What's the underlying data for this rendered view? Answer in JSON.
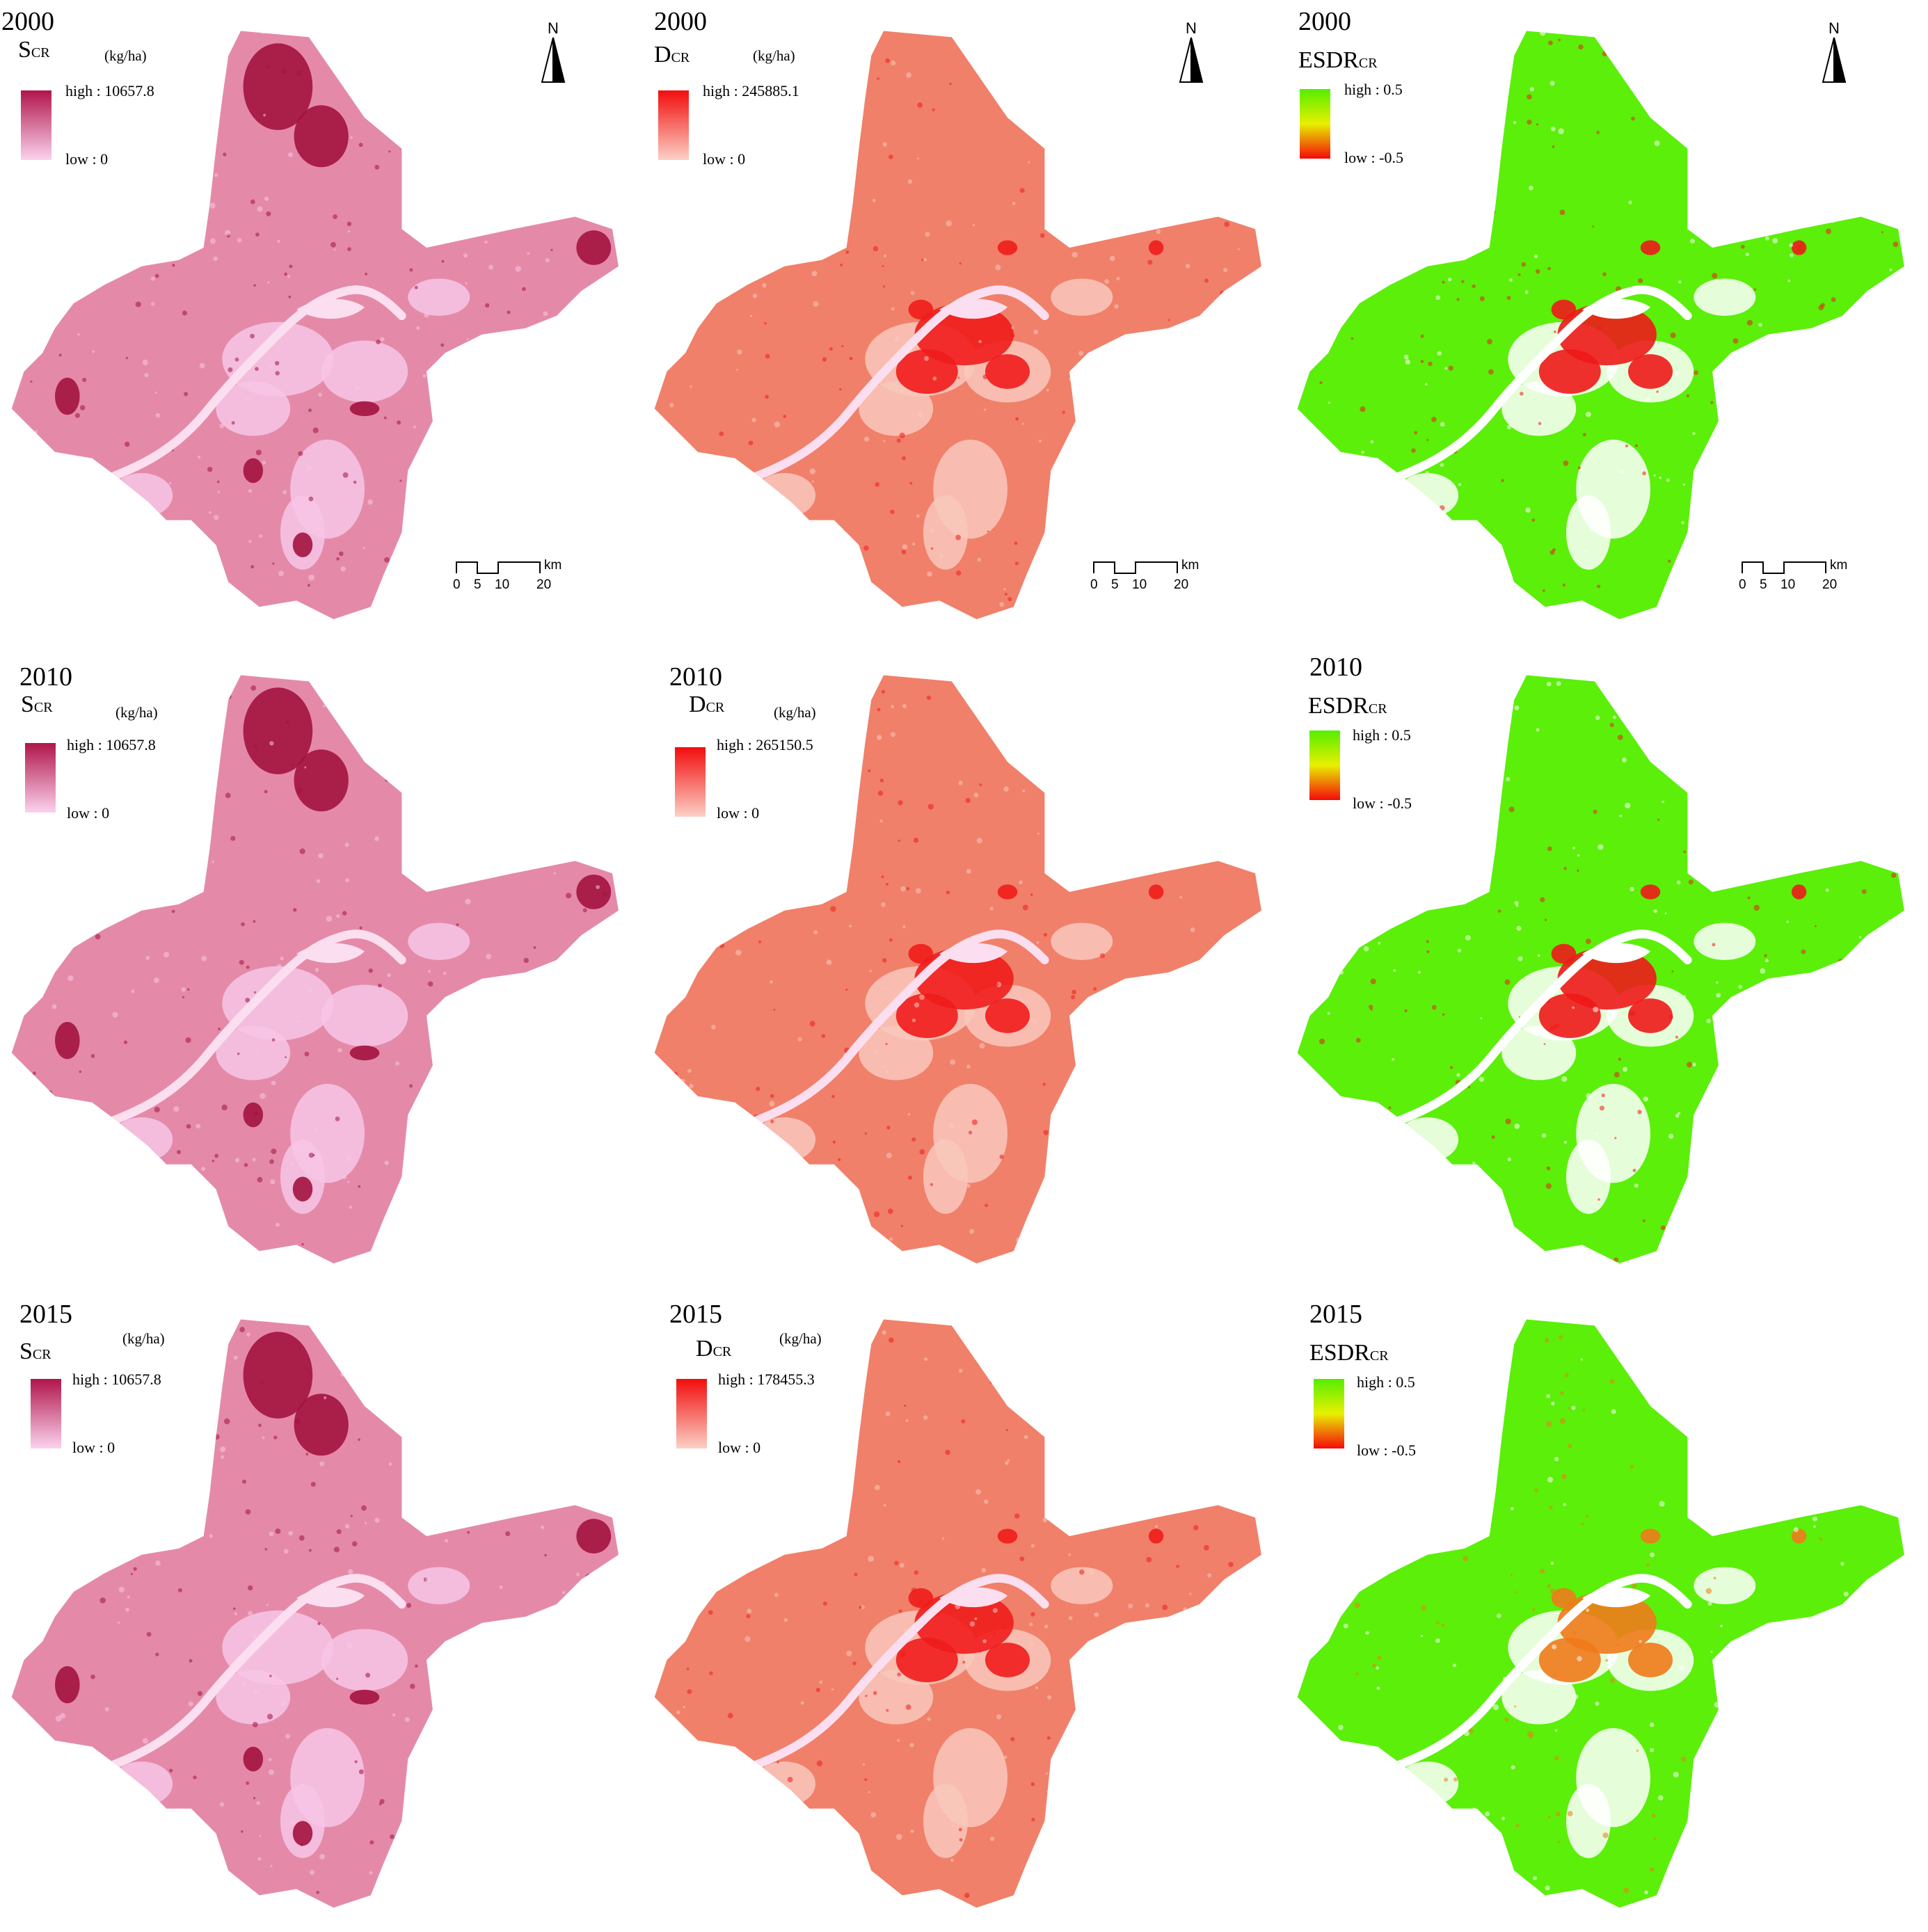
{
  "panels": [
    {
      "year": "2000",
      "var_main": "S",
      "var_sub": "CR",
      "unit": "(kg/ha)",
      "high_label": "high : 10657.8",
      "low_label": "low : 0",
      "legend_top": "#b0154a",
      "legend_bottom": "#fbd3ee",
      "map_base": "#e48aa8",
      "map_light": "#f7c6e6",
      "map_hot": "#a3123f"
    },
    {
      "year": "2000",
      "var_main": "D",
      "var_sub": "CR",
      "unit": "(kg/ha)",
      "high_label": "high : 245885.1",
      "low_label": "low : 0",
      "legend_top": "#f20d0d",
      "legend_bottom": "#fcd0c6",
      "map_base": "#f0806a",
      "map_light": "#f9c8bc",
      "map_hot": "#ef1c1c"
    },
    {
      "year": "2000",
      "var_main": "ESDR",
      "var_sub": "CR",
      "unit": "",
      "high_label": "high : 0.5",
      "low_label": "low : -0.5",
      "legend_top": "#55ee00",
      "legend_bottom": "#f50a0a",
      "map_base": "#5bef0a",
      "map_light": "#ffffff",
      "map_hot": "#ee1a1a"
    },
    {
      "year": "2010",
      "var_main": "S",
      "var_sub": "CR",
      "unit": "(kg/ha)",
      "high_label": "high : 10657.8",
      "low_label": "low : 0",
      "legend_top": "#b0154a",
      "legend_bottom": "#fbd3ee",
      "map_base": "#e48aa8",
      "map_light": "#f7c6e6",
      "map_hot": "#a3123f"
    },
    {
      "year": "2010",
      "var_main": "D",
      "var_sub": "CR",
      "unit": "(kg/ha)",
      "high_label": "high : 265150.5",
      "low_label": "low : 0",
      "legend_top": "#f20d0d",
      "legend_bottom": "#fcd0c6",
      "map_base": "#f0806a",
      "map_light": "#f9c8bc",
      "map_hot": "#ef1c1c"
    },
    {
      "year": "2010",
      "var_main": "ESDR",
      "var_sub": "CR",
      "unit": "",
      "high_label": "high : 0.5",
      "low_label": "low : -0.5",
      "legend_top": "#55ee00",
      "legend_bottom": "#f50a0a",
      "map_base": "#5bef0a",
      "map_light": "#ffffff",
      "map_hot": "#ee1a1a"
    },
    {
      "year": "2015",
      "var_main": "S",
      "var_sub": "CR",
      "unit": "(kg/ha)",
      "high_label": "high : 10657.8",
      "low_label": "low : 0",
      "legend_top": "#b0154a",
      "legend_bottom": "#fbd3ee",
      "map_base": "#e48aa8",
      "map_light": "#f7c6e6",
      "map_hot": "#a3123f"
    },
    {
      "year": "2015",
      "var_main": "D",
      "var_sub": "CR",
      "unit": "(kg/ha)",
      "high_label": "high : 178455.3",
      "low_label": "low : 0",
      "legend_top": "#f20d0d",
      "legend_bottom": "#fcd0c6",
      "map_base": "#f0806a",
      "map_light": "#f9c8bc",
      "map_hot": "#ef1c1c"
    },
    {
      "year": "2015",
      "var_main": "ESDR",
      "var_sub": "CR",
      "unit": "",
      "high_label": "high : 0.5",
      "low_label": "low : -0.5",
      "legend_top": "#55ee00",
      "legend_bottom": "#f50a0a",
      "map_base": "#5bef0a",
      "map_light": "#ffffff",
      "map_hot": "#f07a1a"
    }
  ],
  "north_arrow": {
    "label": "N"
  },
  "scale_bar": {
    "ticks": [
      "0",
      "5",
      "10",
      "20"
    ],
    "unit": "km"
  }
}
